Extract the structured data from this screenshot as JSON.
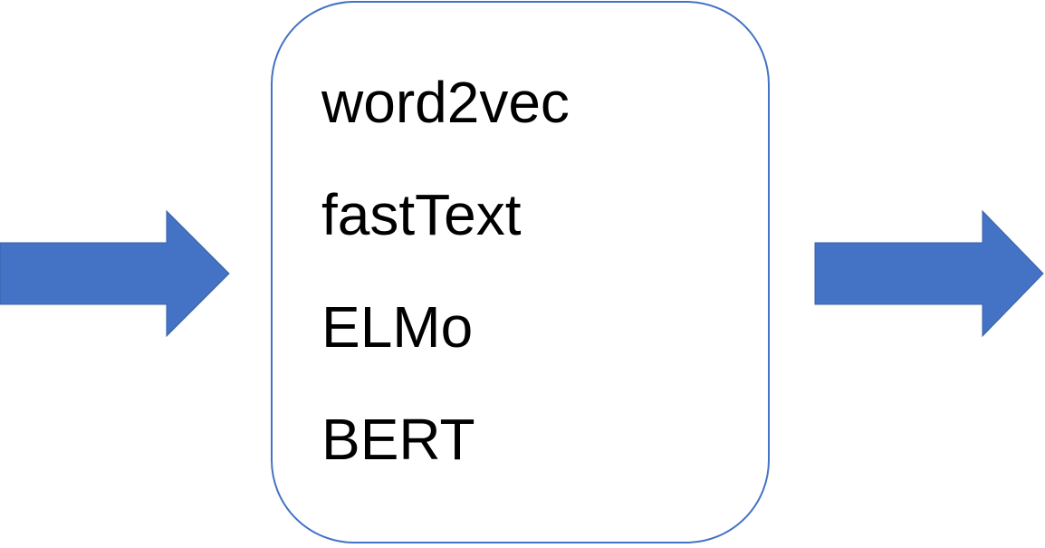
{
  "diagram": {
    "colors": {
      "arrow_fill": "#4472C4",
      "box_border": "#4472C4",
      "text": "#000000"
    },
    "models": [
      {
        "label": "word2vec"
      },
      {
        "label": "fastText"
      },
      {
        "label": "ELMo"
      },
      {
        "label": "BERT"
      }
    ]
  }
}
